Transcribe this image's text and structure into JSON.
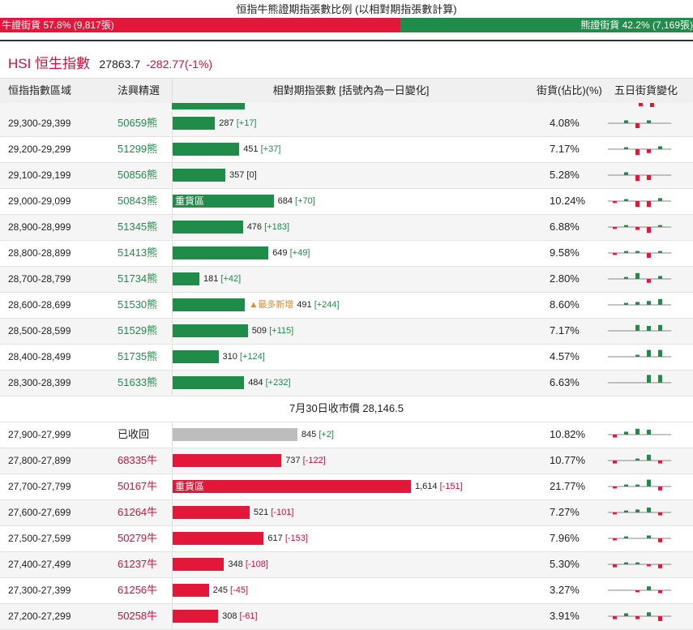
{
  "title": "恒指牛熊證期指張數比例 (以相對期指張數計算)",
  "ratio": {
    "bull_label": "牛證街貨 57.8% (9,817張)",
    "bear_label": "熊證街貨 42.2% (7,169張)",
    "bull_pct": 57.8,
    "colors": {
      "bull": "#e3173a",
      "bear": "#1f8c4a"
    }
  },
  "index": {
    "name": "HSI 恒生指數",
    "value": "27863.7",
    "change": "-282.77(-1%)"
  },
  "headers": {
    "range": "恒指指數區域",
    "code": "法興精選",
    "bar": "相對期指張數 [括號內為一日變化]",
    "pct": "街貨(佔比)(%)",
    "spark": "五日街貨變化"
  },
  "bear_rows": [
    {
      "range": "29,300-29,399",
      "code": "50659熊",
      "value": 287,
      "value_label": "287",
      "delta": "[+17]",
      "dir": "g",
      "pct": "4.08%",
      "spark": [
        0,
        0.3,
        -0.5,
        0.3,
        0
      ],
      "note": "",
      "inside": ""
    },
    {
      "range": "29,200-29,299",
      "code": "51299熊",
      "value": 451,
      "value_label": "451",
      "delta": "[+37]",
      "dir": "g",
      "pct": "7.17%",
      "spark": [
        0,
        0.2,
        -0.6,
        -0.4,
        0.3
      ],
      "note": "",
      "inside": ""
    },
    {
      "range": "29,100-29,199",
      "code": "50856熊",
      "value": 357,
      "value_label": "357",
      "delta": "[0]",
      "dir": "n",
      "pct": "5.28%",
      "spark": [
        0,
        0.3,
        -0.6,
        -0.5,
        0
      ],
      "note": "",
      "inside": ""
    },
    {
      "range": "29,000-29,099",
      "code": "50843熊",
      "value": 684,
      "value_label": "684",
      "delta": "[+70]",
      "dir": "g",
      "pct": "10.24%",
      "spark": [
        -0.2,
        0.2,
        -0.6,
        -0.6,
        0.3
      ],
      "note": "",
      "inside": "重貨區"
    },
    {
      "range": "28,900-28,999",
      "code": "51345熊",
      "value": 476,
      "value_label": "476",
      "delta": "[+183]",
      "dir": "g",
      "pct": "6.88%",
      "spark": [
        -0.2,
        0.2,
        -0.3,
        -0.6,
        0.2
      ],
      "note": "",
      "inside": ""
    },
    {
      "range": "28,800-28,899",
      "code": "51413熊",
      "value": 649,
      "value_label": "649",
      "delta": "[+49]",
      "dir": "g",
      "pct": "9.58%",
      "spark": [
        -0.2,
        0.2,
        0.2,
        -0.5,
        0.2
      ],
      "note": "",
      "inside": ""
    },
    {
      "range": "28,700-28,799",
      "code": "51734熊",
      "value": 181,
      "value_label": "181",
      "delta": "[+42]",
      "dir": "g",
      "pct": "2.80%",
      "spark": [
        0,
        0.2,
        0.6,
        -0.4,
        0.3
      ],
      "note": "",
      "inside": ""
    },
    {
      "range": "28,600-28,699",
      "code": "51530熊",
      "value": 491,
      "value_label": "491",
      "delta": "[+244]",
      "dir": "g",
      "pct": "8.60%",
      "spark": [
        0,
        0.2,
        0.3,
        0.4,
        0.6
      ],
      "note": "▲最多新增",
      "inside": ""
    },
    {
      "range": "28,500-28,599",
      "code": "51529熊",
      "value": 509,
      "value_label": "509",
      "delta": "[+115]",
      "dir": "g",
      "pct": "7.17%",
      "spark": [
        0,
        0,
        0.6,
        0.5,
        0.6
      ],
      "note": "",
      "inside": ""
    },
    {
      "range": "28,400-28,499",
      "code": "51735熊",
      "value": 310,
      "value_label": "310",
      "delta": "[+124]",
      "dir": "g",
      "pct": "4.57%",
      "spark": [
        0,
        0,
        0.2,
        0.7,
        0.7
      ],
      "note": "",
      "inside": ""
    },
    {
      "range": "28,300-28,399",
      "code": "51633熊",
      "value": 484,
      "value_label": "484",
      "delta": "[+232]",
      "dir": "g",
      "pct": "6.63%",
      "spark": [
        0,
        0,
        0,
        0.8,
        0.8
      ],
      "note": "",
      "inside": ""
    }
  ],
  "close_note": "7月30日收市價 28,146.5",
  "bull_rows": [
    {
      "range": "27,900-27,999",
      "code": "已收回",
      "code_type": "recalled",
      "value": 845,
      "value_label": "845",
      "delta": "[+2]",
      "dir": "g",
      "pct": "10.82%",
      "spark": [
        -0.3,
        0.3,
        0.6,
        0.5,
        0
      ],
      "inside": "",
      "color": "k"
    },
    {
      "range": "27,800-27,899",
      "code": "68335牛",
      "code_type": "bull",
      "value": 737,
      "value_label": "737",
      "delta": "[-122]",
      "dir": "r",
      "pct": "10.77%",
      "spark": [
        -0.3,
        0,
        0.2,
        0.6,
        -0.3
      ],
      "inside": "",
      "color": "r"
    },
    {
      "range": "27,700-27,799",
      "code": "50167牛",
      "code_type": "bull",
      "value": 1614,
      "value_label": "1,614",
      "delta": "[-151]",
      "dir": "r",
      "pct": "21.77%",
      "spark": [
        -0.2,
        0.2,
        0.2,
        0.7,
        -0.4
      ],
      "inside": "重貨區",
      "color": "r"
    },
    {
      "range": "27,600-27,699",
      "code": "61264牛",
      "code_type": "bull",
      "value": 521,
      "value_label": "521",
      "delta": "[-101]",
      "dir": "r",
      "pct": "7.27%",
      "spark": [
        -0.2,
        0.2,
        0.3,
        0.5,
        -0.3
      ],
      "inside": "",
      "color": "r"
    },
    {
      "range": "27,500-27,599",
      "code": "50279牛",
      "code_type": "bull",
      "value": 617,
      "value_label": "617",
      "delta": "[-153]",
      "dir": "r",
      "pct": "7.96%",
      "spark": [
        -0.2,
        0.2,
        0,
        0.3,
        -0.4
      ],
      "inside": "",
      "color": "r"
    },
    {
      "range": "27,400-27,499",
      "code": "61237牛",
      "code_type": "bull",
      "value": 348,
      "value_label": "348",
      "delta": "[-108]",
      "dir": "r",
      "pct": "5.30%",
      "spark": [
        -0.3,
        0.2,
        0.2,
        -0.2,
        -0.4
      ],
      "inside": "",
      "color": "r"
    },
    {
      "range": "27,300-27,399",
      "code": "61256牛",
      "code_type": "bull",
      "value": 245,
      "value_label": "245",
      "delta": "[-45]",
      "dir": "r",
      "pct": "3.27%",
      "spark": [
        0,
        0,
        -0.2,
        0.4,
        -0.3
      ],
      "inside": "",
      "color": "r"
    },
    {
      "range": "27,200-27,299",
      "code": "50258牛",
      "code_type": "bull",
      "value": 308,
      "value_label": "308",
      "delta": "[-61]",
      "dir": "r",
      "pct": "3.91%",
      "spark": [
        -0.3,
        0.3,
        -0.3,
        0.4,
        -0.5
      ],
      "inside": "",
      "color": "r"
    }
  ]
}
